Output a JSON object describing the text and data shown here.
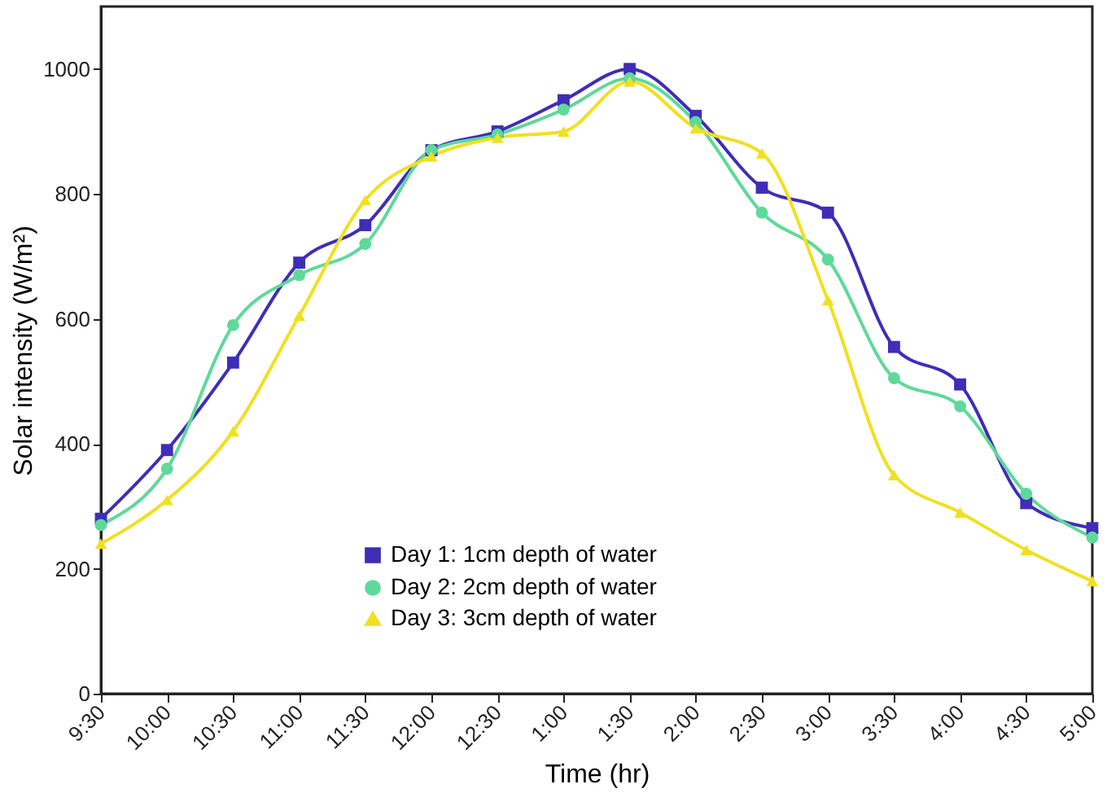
{
  "chart_data": {
    "type": "line",
    "xlabel": "Time (hr)",
    "ylabel": "Solar intensity (W/m²)",
    "categories": [
      "9:30",
      "10:00",
      "10:30",
      "11:00",
      "11:30",
      "12:00",
      "12:30",
      "1:00",
      "1:30",
      "2:00",
      "2:30",
      "3:00",
      "3:30",
      "4:00",
      "4:30",
      "5:00"
    ],
    "series": [
      {
        "name": "Day 1: 1cm depth of water",
        "color": "#3f2db8",
        "marker": "square",
        "values": [
          280,
          390,
          530,
          690,
          750,
          870,
          900,
          950,
          1000,
          925,
          810,
          770,
          555,
          495,
          305,
          265
        ]
      },
      {
        "name": "Day 2: 2cm depth of water",
        "color": "#5fd99a",
        "marker": "circle",
        "values": [
          270,
          360,
          590,
          670,
          720,
          870,
          895,
          935,
          985,
          915,
          770,
          695,
          505,
          460,
          320,
          250
        ]
      },
      {
        "name": "Day 3: 3cm depth of water",
        "color": "#f0e020",
        "marker": "triangle",
        "values": [
          240,
          310,
          420,
          605,
          790,
          860,
          890,
          900,
          980,
          905,
          865,
          630,
          350,
          290,
          230,
          180
        ]
      }
    ],
    "ylim": [
      0,
      1100
    ],
    "yticks": [
      0,
      200,
      400,
      600,
      800,
      1000
    ],
    "grid": false,
    "legend": "bottom",
    "line_style": "solid"
  }
}
